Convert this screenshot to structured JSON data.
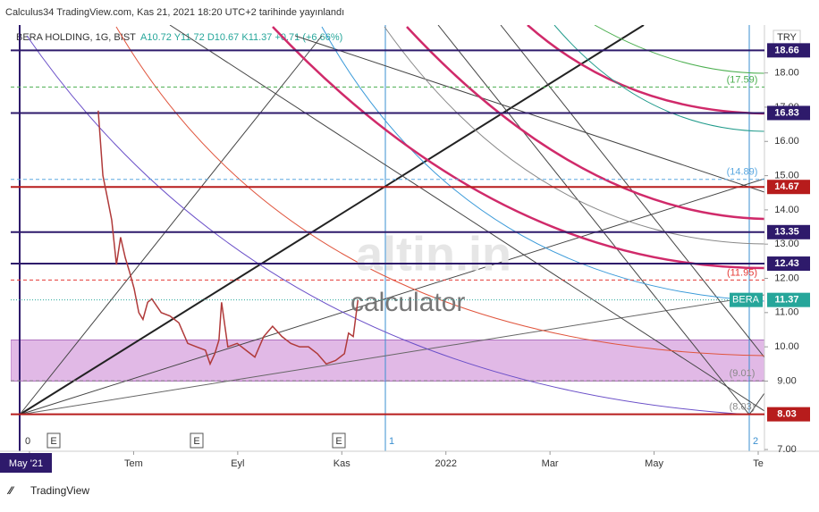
{
  "chart_data": {
    "type": "line",
    "header": "Calculus34 TradingView.com, Kas 21, 2021 18:20 UTC+2 tarihinde yayınlandı",
    "symbol": "BERA HOLDING, 1G, BIST",
    "ohlc": "A10.72 Y11.72 D10.67 K11.37 +0.71 (+6.66%)",
    "currency": "TRY",
    "footer": "TradingView",
    "watermark": [
      "altin.in",
      "calculator"
    ],
    "markers": [
      "0",
      "E",
      "E",
      "E",
      "1",
      "2"
    ],
    "xlim": [
      -0.36,
      14.2
    ],
    "xticks": [
      {
        "value": 0,
        "label": "May '21"
      },
      {
        "value": 2,
        "label": "Tem"
      },
      {
        "value": 4,
        "label": "Eyl"
      },
      {
        "value": 6,
        "label": "Kas"
      },
      {
        "value": 8,
        "label": "2022"
      },
      {
        "value": 10,
        "label": "Mar"
      },
      {
        "value": 12,
        "label": "May"
      },
      {
        "value": 14,
        "label": "Te"
      }
    ],
    "ylim": [
      6.95,
      19.4
    ],
    "yticks": [
      {
        "value": 7,
        "label": "7.00"
      },
      {
        "value": 9,
        "label": "9.00"
      },
      {
        "value": 10,
        "label": "10.00"
      },
      {
        "value": 11,
        "label": "11.00"
      },
      {
        "value": 12,
        "label": "12.00"
      },
      {
        "value": 13,
        "label": "13.00"
      },
      {
        "value": 14,
        "label": "14.00"
      },
      {
        "value": 15,
        "label": "15.00"
      },
      {
        "value": 16,
        "label": "16.00"
      },
      {
        "value": 17,
        "label": "17.00"
      },
      {
        "value": 18,
        "label": "18.00"
      }
    ],
    "series": [
      {
        "name": "BERA",
        "color": "#b03a3a",
        "x": [
          1.32,
          1.41,
          1.49,
          1.58,
          1.67,
          1.75,
          1.84,
          1.92,
          2.01,
          2.1,
          2.18,
          2.27,
          2.35,
          2.53,
          2.7,
          2.87,
          3.04,
          3.21,
          3.38,
          3.47,
          3.56,
          3.64,
          3.69,
          3.81,
          3.99,
          4.16,
          4.33,
          4.5,
          4.67,
          4.85,
          5.02,
          5.19,
          5.36,
          5.53,
          5.7,
          5.88,
          6.05,
          6.13,
          6.22,
          6.31
        ],
        "values": [
          16.9,
          15.0,
          14.4,
          13.7,
          12.4,
          13.2,
          12.6,
          12.2,
          11.7,
          11.0,
          10.8,
          11.3,
          11.4,
          11.0,
          10.9,
          10.7,
          10.1,
          10.0,
          9.9,
          9.5,
          9.8,
          10.2,
          11.3,
          10.0,
          10.1,
          9.9,
          9.7,
          10.3,
          10.6,
          10.3,
          10.1,
          10.0,
          10.0,
          9.8,
          9.5,
          9.6,
          9.8,
          10.4,
          10.3,
          11.37
        ]
      }
    ],
    "last": {
      "name": "BERA",
      "value": 11.37,
      "color": "#26a69a"
    },
    "levels": [
      {
        "value": 18.66,
        "color": "#2e1a6b"
      },
      {
        "value": 16.83,
        "color": "#2e1a6b"
      },
      {
        "value": 14.67,
        "color": "#b71c1c"
      },
      {
        "value": 13.35,
        "color": "#2e1a6b"
      },
      {
        "value": 12.43,
        "color": "#2e1a6b"
      },
      {
        "value": 8.03,
        "color": "#b71c1c"
      }
    ],
    "dashed_levels": [
      {
        "value": 17.59,
        "label": "(17.59)",
        "color": "#4caf50"
      },
      {
        "value": 14.89,
        "label": "(14.89)",
        "color": "#5ba8e0"
      },
      {
        "value": 11.95,
        "label": "(11.95)",
        "color": "#e53935"
      },
      {
        "value": 9.01,
        "label": "(9.01)",
        "color": "#888888"
      },
      {
        "value": 8.03,
        "label": "(8.03)",
        "color": "#888888"
      }
    ],
    "zone": {
      "from": 9.0,
      "to": 10.2,
      "color": "#d9a8e0"
    },
    "grid": false
  }
}
